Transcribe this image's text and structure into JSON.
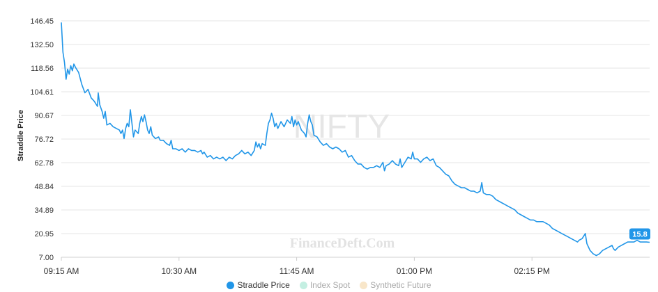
{
  "chart_data": {
    "type": "line",
    "ylabel": "Straddle Price",
    "xlabel": "",
    "y_ticks": [
      "146.45",
      "132.50",
      "118.56",
      "104.61",
      "90.67",
      "76.72",
      "62.78",
      "48.84",
      "34.89",
      "20.95",
      "7.00"
    ],
    "ylim": [
      7.0,
      146.45
    ],
    "x_ticks": [
      "09:15 AM",
      "10:30 AM",
      "11:45 AM",
      "01:00 PM",
      "02:15 PM"
    ],
    "x_tick_minutes": [
      555,
      630,
      705,
      780,
      855
    ],
    "xlim_minutes": [
      555,
      930
    ],
    "grid": true,
    "watermark": "NIFTY",
    "brand": "FinanceDeft.Com",
    "last_value_label": "15.8",
    "series": [
      {
        "name": "Straddle Price",
        "color": "#2196e8",
        "visible": true,
        "points": [
          [
            555,
            145.5
          ],
          [
            556,
            128
          ],
          [
            557,
            122
          ],
          [
            558,
            112
          ],
          [
            559,
            118
          ],
          [
            560,
            115
          ],
          [
            561,
            120
          ],
          [
            562,
            117
          ],
          [
            563,
            121
          ],
          [
            564,
            119
          ],
          [
            566,
            116
          ],
          [
            568,
            109
          ],
          [
            570,
            104
          ],
          [
            572,
            106
          ],
          [
            574,
            101
          ],
          [
            576,
            99
          ],
          [
            578,
            96
          ],
          [
            578.5,
            104
          ],
          [
            579.5,
            97
          ],
          [
            581,
            93
          ],
          [
            582,
            89
          ],
          [
            583,
            93
          ],
          [
            584,
            85
          ],
          [
            586,
            86
          ],
          [
            588,
            84
          ],
          [
            590,
            83
          ],
          [
            592,
            82
          ],
          [
            593,
            80
          ],
          [
            594,
            82
          ],
          [
            595,
            77
          ],
          [
            596,
            83
          ],
          [
            597,
            86
          ],
          [
            598,
            84
          ],
          [
            599,
            94
          ],
          [
            600,
            86
          ],
          [
            601,
            78
          ],
          [
            602,
            82
          ],
          [
            604,
            80
          ],
          [
            605,
            86
          ],
          [
            606,
            90
          ],
          [
            607,
            87
          ],
          [
            608,
            91
          ],
          [
            609,
            87
          ],
          [
            610,
            82
          ],
          [
            611,
            80
          ],
          [
            612,
            84
          ],
          [
            613,
            79
          ],
          [
            614,
            78
          ],
          [
            615,
            77
          ],
          [
            617,
            78
          ],
          [
            618,
            76
          ],
          [
            620,
            76
          ],
          [
            622,
            74
          ],
          [
            624,
            73
          ],
          [
            625,
            76
          ],
          [
            626,
            71
          ],
          [
            628,
            71
          ],
          [
            630,
            70
          ],
          [
            632,
            71
          ],
          [
            634,
            69
          ],
          [
            636,
            71
          ],
          [
            638,
            70
          ],
          [
            640,
            70
          ],
          [
            642,
            69
          ],
          [
            644,
            70
          ],
          [
            645,
            68
          ],
          [
            646,
            69
          ],
          [
            648,
            66
          ],
          [
            650,
            67
          ],
          [
            652,
            65
          ],
          [
            654,
            66
          ],
          [
            656,
            65
          ],
          [
            658,
            66
          ],
          [
            660,
            64
          ],
          [
            662,
            66
          ],
          [
            664,
            65
          ],
          [
            666,
            67
          ],
          [
            668,
            68
          ],
          [
            670,
            70
          ],
          [
            672,
            68
          ],
          [
            674,
            69
          ],
          [
            676,
            67
          ],
          [
            678,
            70
          ],
          [
            679,
            75
          ],
          [
            680,
            72
          ],
          [
            681,
            74
          ],
          [
            682,
            71
          ],
          [
            683,
            74
          ],
          [
            685,
            73
          ],
          [
            686,
            80
          ],
          [
            687,
            86
          ],
          [
            688,
            88
          ],
          [
            689,
            92
          ],
          [
            690,
            89
          ],
          [
            691,
            84
          ],
          [
            692,
            86
          ],
          [
            693,
            83
          ],
          [
            695,
            87
          ],
          [
            697,
            84
          ],
          [
            699,
            88
          ],
          [
            701,
            86
          ],
          [
            702,
            90
          ],
          [
            703,
            84
          ],
          [
            704,
            88
          ],
          [
            705,
            85
          ],
          [
            706,
            87
          ],
          [
            708,
            82
          ],
          [
            710,
            80
          ],
          [
            711,
            78
          ],
          [
            712,
            86
          ],
          [
            713,
            91
          ],
          [
            714,
            87
          ],
          [
            715,
            85
          ],
          [
            716,
            79
          ],
          [
            718,
            78
          ],
          [
            720,
            75
          ],
          [
            722,
            73
          ],
          [
            724,
            74
          ],
          [
            726,
            72
          ],
          [
            728,
            71
          ],
          [
            730,
            72
          ],
          [
            732,
            71
          ],
          [
            734,
            69
          ],
          [
            736,
            70
          ],
          [
            738,
            66
          ],
          [
            740,
            67
          ],
          [
            742,
            64
          ],
          [
            744,
            62
          ],
          [
            746,
            62
          ],
          [
            748,
            60
          ],
          [
            750,
            59
          ],
          [
            752,
            60
          ],
          [
            754,
            60
          ],
          [
            756,
            61
          ],
          [
            758,
            60
          ],
          [
            760,
            63
          ],
          [
            761,
            58
          ],
          [
            762,
            61
          ],
          [
            764,
            62
          ],
          [
            766,
            64
          ],
          [
            768,
            62
          ],
          [
            770,
            61
          ],
          [
            771,
            65
          ],
          [
            772,
            60
          ],
          [
            774,
            63
          ],
          [
            776,
            66
          ],
          [
            778,
            65
          ],
          [
            779,
            69
          ],
          [
            780,
            65
          ],
          [
            782,
            65
          ],
          [
            784,
            63
          ],
          [
            786,
            65
          ],
          [
            788,
            66
          ],
          [
            790,
            64
          ],
          [
            792,
            65
          ],
          [
            794,
            61
          ],
          [
            796,
            60
          ],
          [
            798,
            58
          ],
          [
            800,
            56
          ],
          [
            802,
            55
          ],
          [
            804,
            52
          ],
          [
            806,
            50
          ],
          [
            808,
            49
          ],
          [
            810,
            48
          ],
          [
            812,
            48
          ],
          [
            814,
            47
          ],
          [
            816,
            46
          ],
          [
            818,
            46
          ],
          [
            820,
            45
          ],
          [
            822,
            46
          ],
          [
            823,
            51
          ],
          [
            824,
            45
          ],
          [
            826,
            44
          ],
          [
            828,
            44
          ],
          [
            830,
            43
          ],
          [
            832,
            41
          ],
          [
            834,
            40
          ],
          [
            836,
            39
          ],
          [
            838,
            38
          ],
          [
            840,
            37
          ],
          [
            842,
            36
          ],
          [
            844,
            35
          ],
          [
            846,
            33
          ],
          [
            848,
            32
          ],
          [
            850,
            31
          ],
          [
            852,
            30
          ],
          [
            854,
            29
          ],
          [
            856,
            29
          ],
          [
            858,
            28
          ],
          [
            860,
            28
          ],
          [
            862,
            28
          ],
          [
            864,
            27
          ],
          [
            866,
            26
          ],
          [
            868,
            24
          ],
          [
            870,
            23
          ],
          [
            872,
            22
          ],
          [
            874,
            21
          ],
          [
            876,
            20
          ],
          [
            878,
            19
          ],
          [
            880,
            18
          ],
          [
            882,
            17
          ],
          [
            884,
            16
          ],
          [
            885,
            17
          ],
          [
            887,
            18
          ],
          [
            889,
            21
          ],
          [
            890,
            15
          ],
          [
            892,
            11
          ],
          [
            894,
            9
          ],
          [
            896,
            8
          ],
          [
            898,
            9
          ],
          [
            900,
            11
          ],
          [
            902,
            12
          ],
          [
            904,
            13
          ],
          [
            906,
            14
          ],
          [
            907,
            12
          ],
          [
            908,
            11
          ],
          [
            910,
            13
          ],
          [
            912,
            14
          ],
          [
            914,
            15
          ],
          [
            916,
            16
          ],
          [
            918,
            16
          ],
          [
            920,
            16
          ],
          [
            922,
            17
          ],
          [
            924,
            16
          ],
          [
            926,
            16
          ],
          [
            928,
            16
          ],
          [
            930,
            15.8
          ]
        ]
      },
      {
        "name": "Index Spot",
        "color": "#c4efe2",
        "visible": false
      },
      {
        "name": "Synthetic Future",
        "color": "#f8e6c9",
        "visible": false
      }
    ]
  },
  "legend": {
    "items": [
      {
        "label": "Straddle Price",
        "color": "#2196e8"
      },
      {
        "label": "Index Spot",
        "color": "#c4efe2"
      },
      {
        "label": "Synthetic Future",
        "color": "#f8e6c9"
      }
    ]
  }
}
